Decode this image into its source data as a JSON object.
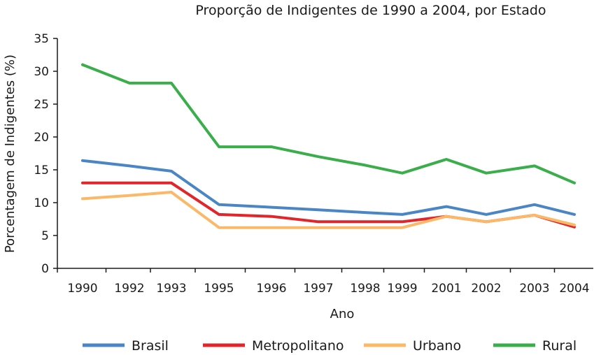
{
  "chart_data": {
    "type": "line",
    "title": "Proporção de Indigentes de 1990 a 2004, por Estado",
    "xlabel": "Ano",
    "ylabel": "Porcentagem de Indigentes (%)",
    "categories": [
      "1990",
      "1992",
      "1993",
      "1995",
      "1996",
      "1997",
      "1998",
      "1999",
      "2001",
      "2002",
      "2003",
      "2004"
    ],
    "ylim": [
      0,
      35
    ],
    "yticks": [
      "0",
      "5",
      "10",
      "15",
      "20",
      "25",
      "30",
      "35"
    ],
    "grid": false,
    "legend_position": "bottom",
    "series": [
      {
        "name": "Brasil",
        "color": "#4a86c5",
        "values": [
          16.4,
          15.6,
          14.8,
          9.7,
          9.3,
          8.9,
          8.5,
          8.2,
          9.4,
          8.2,
          9.7,
          8.2
        ]
      },
      {
        "name": "Metropolitano",
        "color": "#e2252b",
        "values": [
          13.0,
          13.0,
          13.0,
          8.2,
          7.9,
          7.1,
          7.1,
          7.1,
          7.9,
          7.1,
          8.1,
          6.3
        ]
      },
      {
        "name": "Urbano",
        "color": "#fbb867",
        "values": [
          10.6,
          11.1,
          11.6,
          6.2,
          6.2,
          6.2,
          6.2,
          6.2,
          7.9,
          7.1,
          8.1,
          6.6
        ]
      },
      {
        "name": "Rural",
        "color": "#3aae4a",
        "values": [
          31.0,
          28.2,
          28.2,
          18.5,
          18.5,
          17.0,
          15.7,
          14.5,
          16.6,
          14.5,
          15.6,
          13.0
        ]
      }
    ]
  }
}
